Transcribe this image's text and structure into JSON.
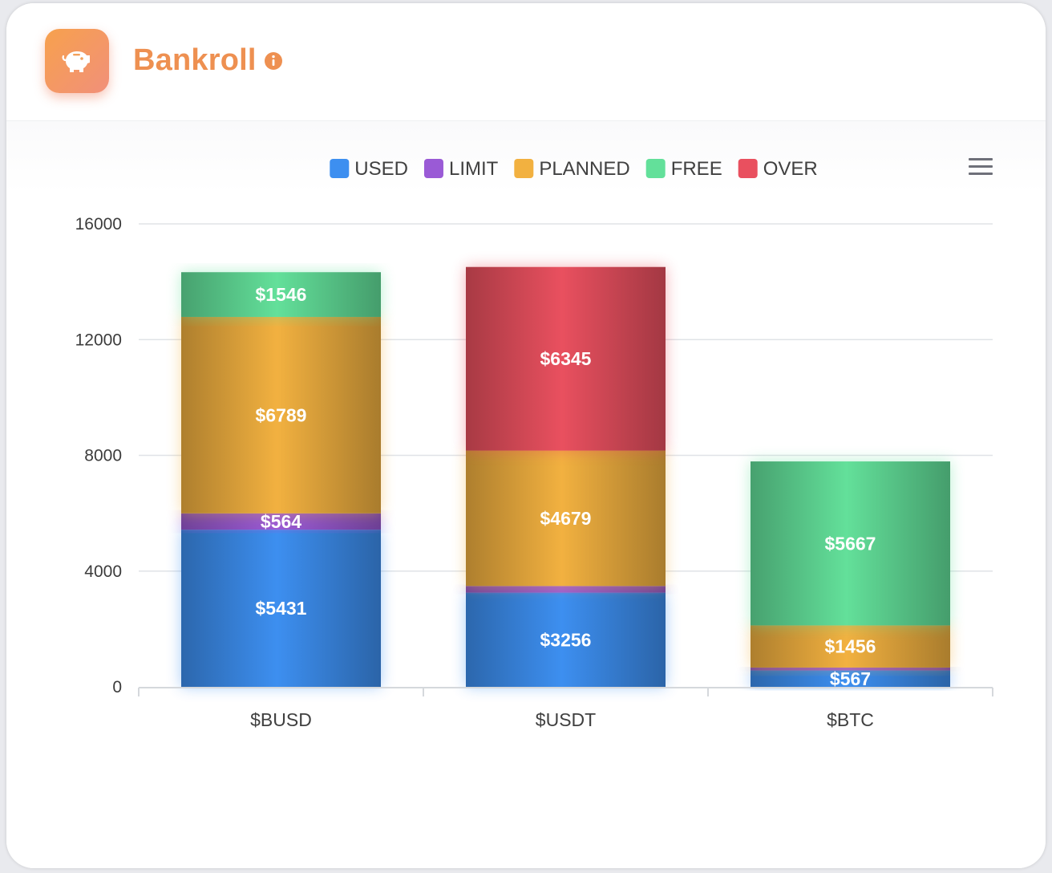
{
  "header": {
    "title": "Bankroll",
    "icon": "piggy-bank-icon",
    "info_icon": "info-icon",
    "accent_color": "#ee9051"
  },
  "toolbar": {
    "menu_icon": "hamburger-menu-icon"
  },
  "chart_data": {
    "type": "bar",
    "stacked": true,
    "categories": [
      "$BUSD",
      "$USDT",
      "$BTC"
    ],
    "series": [
      {
        "name": "USED",
        "color": "#3d8ff0",
        "values": [
          5431,
          3256,
          567
        ],
        "labels": [
          "$5431",
          "$3256",
          "$567"
        ]
      },
      {
        "name": "LIMIT",
        "color": "#9a5ad6",
        "values": [
          564,
          230,
          100
        ],
        "labels": [
          "$564",
          "",
          ""
        ]
      },
      {
        "name": "PLANNED",
        "color": "#f2b140",
        "values": [
          6789,
          4679,
          1456
        ],
        "labels": [
          "$6789",
          "$4679",
          "$1456"
        ]
      },
      {
        "name": "FREE",
        "color": "#63e09a",
        "values": [
          1546,
          0,
          5667
        ],
        "labels": [
          "$1546",
          "",
          "$5667"
        ]
      },
      {
        "name": "OVER",
        "color": "#e9505f",
        "values": [
          0,
          6345,
          0
        ],
        "labels": [
          "",
          "$6345",
          ""
        ]
      }
    ],
    "ylim": [
      0,
      16000
    ],
    "yticks": [
      "0",
      "4000",
      "8000",
      "12000",
      "16000"
    ],
    "grid": true,
    "legend_position": "top-center"
  }
}
